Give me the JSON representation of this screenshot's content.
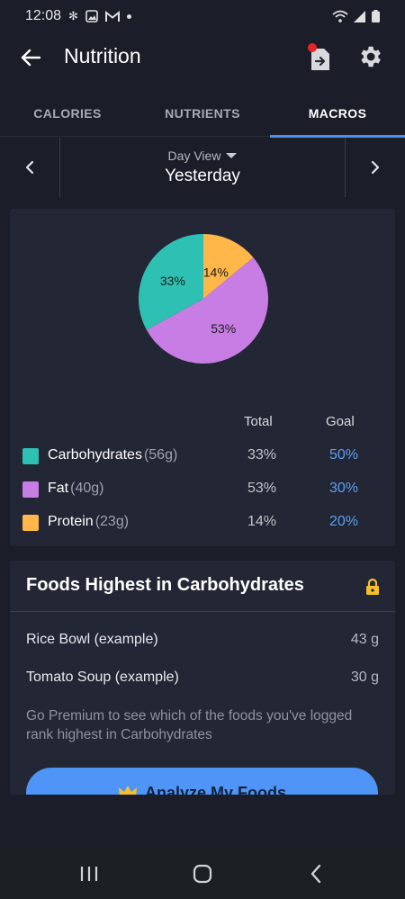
{
  "status_bar": {
    "time": "12:08"
  },
  "app_bar": {
    "title": "Nutrition"
  },
  "tabs": [
    {
      "label": "CALORIES",
      "active": false
    },
    {
      "label": "NUTRIENTS",
      "active": false
    },
    {
      "label": "MACROS",
      "active": true
    }
  ],
  "date_nav": {
    "view_label": "Day View",
    "date_label": "Yesterday"
  },
  "chart_data": {
    "type": "pie",
    "slices": [
      {
        "label": "Protein",
        "value": 14,
        "display": "14%",
        "color": "#ffb74a"
      },
      {
        "label": "Fat",
        "value": 53,
        "display": "53%",
        "color": "#c77de3"
      },
      {
        "label": "Carbohydrates",
        "value": 33,
        "display": "33%",
        "color": "#2ec0b2"
      }
    ]
  },
  "macros": {
    "header_total": "Total",
    "header_goal": "Goal",
    "rows": [
      {
        "name": "Carbohydrates",
        "grams": "(56g)",
        "total": "33%",
        "goal": "50%",
        "color": "#2ec0b2"
      },
      {
        "name": "Fat",
        "grams": "(40g)",
        "total": "53%",
        "goal": "30%",
        "color": "#c77de3"
      },
      {
        "name": "Protein",
        "grams": "(23g)",
        "total": "14%",
        "goal": "20%",
        "color": "#ffb74a"
      }
    ]
  },
  "foods": {
    "title": "Foods Highest in Carbohydrates",
    "items": [
      {
        "name": "Rice Bowl (example)",
        "amount": "43 g"
      },
      {
        "name": "Tomato Soup (example)",
        "amount": "30 g"
      }
    ],
    "premium_text": "Go Premium to see which of the foods you've logged rank highest in Carbohydrates",
    "button_label": "Analyze My Foods"
  }
}
